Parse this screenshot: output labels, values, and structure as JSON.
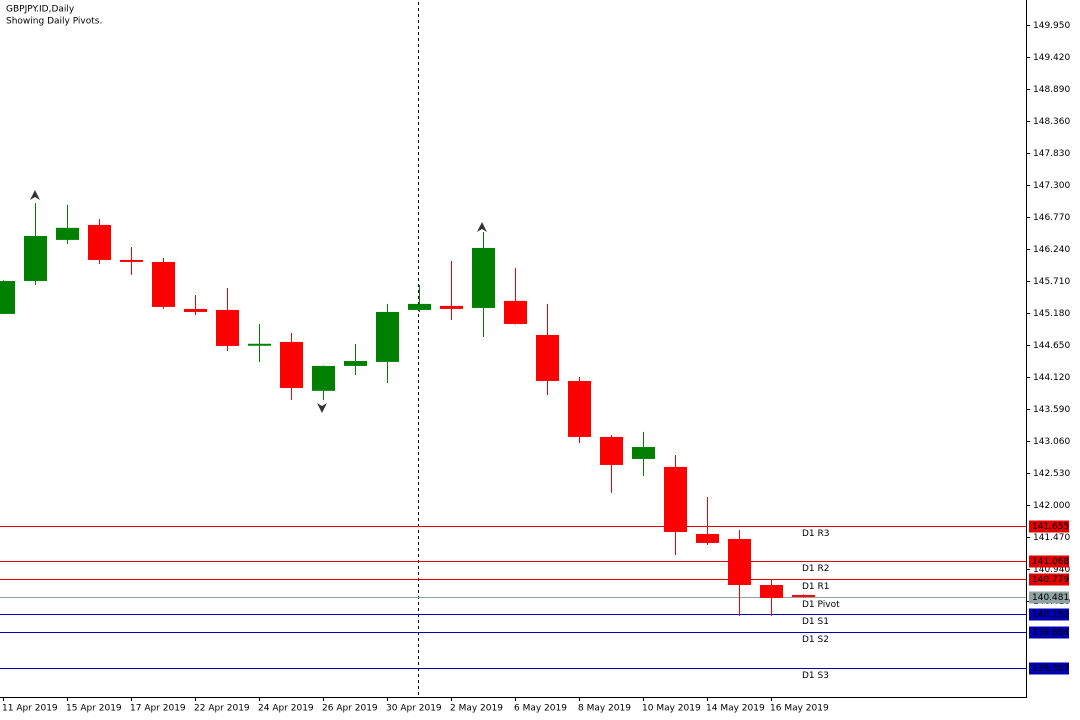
{
  "chart_data": {
    "type": "candlestick",
    "title": "GBPJPY.ID,Daily",
    "subtitle": "Showing Daily Pivots.",
    "categories": [
      "11 Apr 2019",
      null,
      "15 Apr 2019",
      null,
      "17 Apr 2019",
      null,
      "22 Apr 2019",
      null,
      "24 Apr 2019",
      null,
      "26 Apr 2019",
      null,
      "30 Apr 2019",
      null,
      "2 May 2019",
      null,
      "6 May 2019",
      null,
      "8 May 2019",
      null,
      "10 May 2019",
      null,
      "14 May 2019",
      null,
      "16 May 2019",
      null
    ],
    "open": [
      145.164,
      145.71,
      146.39,
      146.638,
      146.058,
      146.025,
      145.247,
      145.23,
      144.66,
      144.7,
      143.89,
      144.303,
      144.369,
      145.23,
      145.297,
      145.263,
      145.38,
      144.816,
      144.054,
      143.127,
      142.762,
      142.63,
      141.52,
      141.437,
      140.675,
      140.51
    ],
    "high": [
      145.72,
      147.0,
      146.97,
      146.737,
      146.273,
      146.09,
      145.478,
      145.594,
      144.998,
      144.849,
      144.31,
      144.667,
      145.33,
      145.645,
      146.04,
      146.52,
      145.926,
      145.33,
      144.12,
      143.16,
      143.21,
      142.828,
      142.133,
      141.586,
      140.76,
      140.52
    ],
    "low": [
      145.16,
      145.645,
      146.323,
      145.99,
      145.81,
      145.247,
      145.147,
      144.55,
      144.369,
      143.74,
      143.74,
      144.153,
      144.02,
      145.197,
      145.064,
      144.783,
      144.99,
      143.822,
      143.027,
      142.2,
      142.48,
      141.172,
      141.338,
      140.162,
      140.162,
      140.47
    ],
    "close": [
      145.71,
      146.455,
      146.59,
      146.058,
      146.025,
      145.28,
      145.197,
      144.634,
      144.67,
      143.938,
      144.303,
      144.385,
      145.197,
      145.33,
      145.247,
      146.257,
      144.998,
      144.054,
      143.127,
      142.663,
      142.96,
      141.553,
      141.371,
      140.675,
      140.46,
      140.49
    ],
    "up_color": "#008000",
    "down_color": "#ff0000",
    "ylim": [
      138.82,
      150.33
    ],
    "yticks": [
      {
        "value": 149.95,
        "label": "149.950"
      },
      {
        "value": 149.42,
        "label": "149.420"
      },
      {
        "value": 148.89,
        "label": "148.890"
      },
      {
        "value": 148.36,
        "label": "148.360"
      },
      {
        "value": 147.83,
        "label": "147.830"
      },
      {
        "value": 147.3,
        "label": "147.300"
      },
      {
        "value": 146.77,
        "label": "146.770"
      },
      {
        "value": 146.24,
        "label": "146.240"
      },
      {
        "value": 145.71,
        "label": "145.710"
      },
      {
        "value": 145.18,
        "label": "145.180"
      },
      {
        "value": 144.65,
        "label": "144.650"
      },
      {
        "value": 144.12,
        "label": "144.120"
      },
      {
        "value": 143.59,
        "label": "143.590"
      },
      {
        "value": 143.06,
        "label": "143.060"
      },
      {
        "value": 142.53,
        "label": "142.530"
      },
      {
        "value": 142.0,
        "label": "142.000"
      },
      {
        "value": 141.47,
        "label": "141.470"
      },
      {
        "value": 140.94,
        "label": "140.940"
      },
      {
        "value": 140.41,
        "label": "140.410"
      }
    ],
    "pivots": [
      {
        "name": "D1 R3",
        "value": 141.655,
        "color": "#e00000"
      },
      {
        "name": "D1 R2",
        "value": 141.068,
        "color": "#e00000"
      },
      {
        "name": "D1 R1",
        "value": 140.779,
        "color": "#e00000"
      },
      {
        "name": "D1 Pivot",
        "value": 140.481,
        "color": "#8fa3a3"
      },
      {
        "name": "D1 S1",
        "value": 140.192,
        "color": "#0000b0"
      },
      {
        "name": "D1 S2",
        "value": 139.894,
        "color": "#0000b0"
      },
      {
        "name": "D1 S3",
        "value": 139.307,
        "color": "#0000b0"
      }
    ]
  }
}
